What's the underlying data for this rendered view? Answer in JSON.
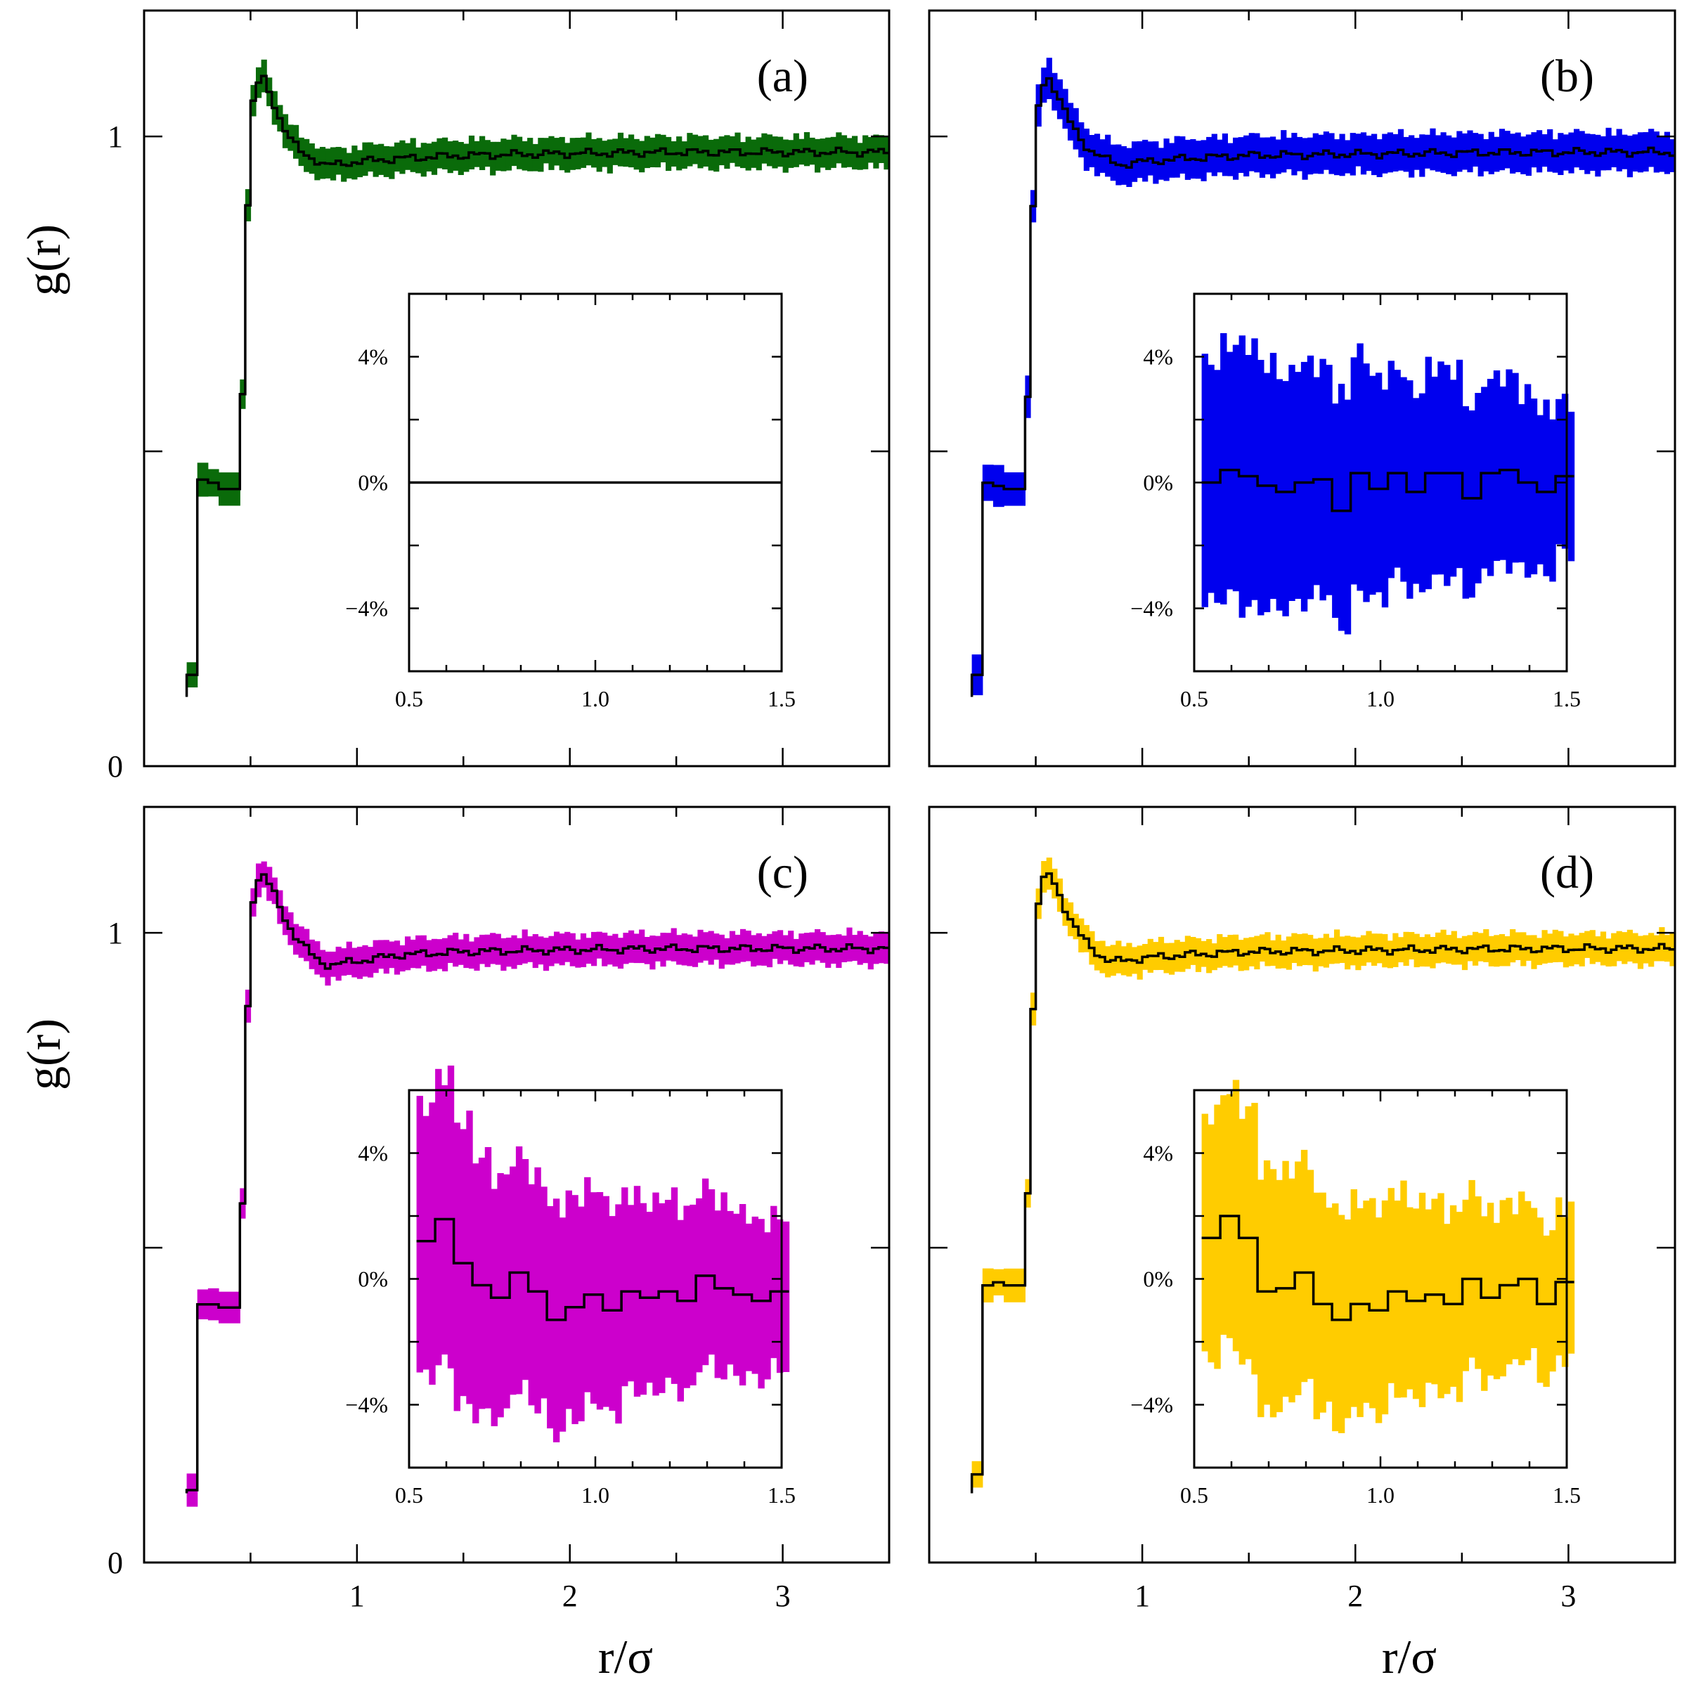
{
  "figure": {
    "xlabel": "r/σ",
    "ylabel": "g(r)",
    "x_ticks": [
      1,
      2,
      3
    ],
    "x_tick_labels": [
      "1",
      "2",
      "3"
    ],
    "y_ticks": [
      0,
      1
    ],
    "y_tick_labels": [
      "0",
      "1"
    ],
    "inset_x_tick_labels": [
      "0.5",
      "1.0",
      "1.5"
    ],
    "inset_y_tick_labels": [
      "4%",
      "0%",
      "−4%"
    ]
  },
  "chart_data": [
    {
      "type": "line",
      "panel": "(a)",
      "color": "#0a6b0a",
      "xlabel": "",
      "ylabel": "g(r)",
      "xlim": [
        0,
        3.5
      ],
      "ylim": [
        0,
        1.2
      ],
      "x": [
        0.2,
        0.45,
        0.5,
        0.55,
        0.6,
        0.65,
        0.7,
        0.75,
        0.8,
        0.85,
        0.9,
        1.0,
        1.2,
        1.5,
        2.0,
        2.5,
        3.0,
        3.5
      ],
      "y": [
        0.14,
        0.45,
        1.04,
        1.1,
        1.06,
        1.02,
        0.99,
        0.97,
        0.965,
        0.955,
        0.955,
        0.96,
        0.965,
        0.97,
        0.973,
        0.975,
        0.975,
        0.975
      ],
      "band": 0.02,
      "near_values": [
        0.145,
        0.455,
        0.45,
        0.44
      ],
      "inset": {
        "xlim": [
          0.5,
          1.5
        ],
        "ylim": [
          -6,
          6
        ],
        "x": [
          0.5,
          0.6,
          0.7,
          0.8,
          0.9,
          1.0,
          1.1,
          1.2,
          1.3,
          1.4,
          1.5
        ],
        "y": [
          0,
          0,
          0,
          0,
          0,
          0,
          0,
          0,
          0,
          0,
          0
        ],
        "band": [
          0,
          0,
          0,
          0,
          0,
          0,
          0,
          0,
          0,
          0,
          0
        ]
      }
    },
    {
      "type": "line",
      "panel": "(b)",
      "color": "#0000ee",
      "xlabel": "",
      "ylabel": "",
      "xlim": [
        0,
        3.5
      ],
      "ylim": [
        0,
        1.2
      ],
      "x": [
        0.2,
        0.45,
        0.5,
        0.55,
        0.6,
        0.65,
        0.7,
        0.75,
        0.8,
        0.85,
        0.9,
        1.0,
        1.2,
        1.5,
        2.0,
        2.5,
        3.0,
        3.5
      ],
      "y": [
        0.14,
        0.44,
        1.03,
        1.1,
        1.07,
        1.03,
        1.0,
        0.98,
        0.97,
        0.96,
        0.955,
        0.96,
        0.965,
        0.97,
        0.972,
        0.974,
        0.975,
        0.975
      ],
      "band": 0.025,
      "near_values": [
        0.145,
        0.45,
        0.445,
        0.44
      ],
      "inset": {
        "xlim": [
          0.5,
          1.5
        ],
        "ylim": [
          -6,
          6
        ],
        "x": [
          0.52,
          0.57,
          0.62,
          0.67,
          0.72,
          0.77,
          0.82,
          0.87,
          0.92,
          0.97,
          1.02,
          1.07,
          1.12,
          1.17,
          1.22,
          1.27,
          1.32,
          1.37,
          1.42,
          1.47
        ],
        "y": [
          0.0,
          0.4,
          0.2,
          -0.1,
          -0.3,
          0.0,
          0.1,
          -0.9,
          0.3,
          -0.2,
          0.3,
          -0.3,
          0.3,
          0.3,
          -0.5,
          0.3,
          0.4,
          0.0,
          -0.3,
          0.2
        ],
        "band": [
          3.8,
          4.0,
          4.2,
          3.9,
          3.7,
          3.8,
          3.6,
          3.7,
          3.8,
          3.5,
          3.3,
          3.2,
          3.4,
          3.3,
          3.0,
          3.0,
          3.0,
          2.8,
          2.6,
          2.4
        ]
      }
    },
    {
      "type": "line",
      "panel": "(c)",
      "color": "#cc00cc",
      "xlabel": "r/σ",
      "ylabel": "g(r)",
      "xlim": [
        0,
        3.5
      ],
      "ylim": [
        0,
        1.2
      ],
      "x": [
        0.2,
        0.45,
        0.5,
        0.55,
        0.6,
        0.65,
        0.7,
        0.75,
        0.8,
        0.85,
        0.9,
        1.0,
        1.2,
        1.5,
        2.0,
        2.5,
        3.0,
        3.5
      ],
      "y": [
        0.11,
        0.41,
        1.04,
        1.1,
        1.07,
        1.03,
        1.0,
        0.98,
        0.96,
        0.95,
        0.95,
        0.955,
        0.965,
        0.97,
        0.973,
        0.975,
        0.975,
        0.975
      ],
      "band": 0.02,
      "near_values": [
        0.115,
        0.41,
        0.41,
        0.405
      ],
      "inset": {
        "xlim": [
          0.5,
          1.5
        ],
        "ylim": [
          -6,
          6
        ],
        "x": [
          0.52,
          0.57,
          0.62,
          0.67,
          0.72,
          0.77,
          0.82,
          0.87,
          0.92,
          0.97,
          1.02,
          1.07,
          1.12,
          1.17,
          1.22,
          1.27,
          1.32,
          1.37,
          1.42,
          1.47
        ],
        "y": [
          1.2,
          1.9,
          0.5,
          -0.2,
          -0.6,
          0.2,
          -0.4,
          -1.3,
          -0.9,
          -0.5,
          -1.0,
          -0.4,
          -0.6,
          -0.4,
          -0.7,
          0.1,
          -0.3,
          -0.5,
          -0.7,
          -0.4
        ],
        "band": [
          4.3,
          4.6,
          4.5,
          4.1,
          3.8,
          3.7,
          3.6,
          3.6,
          3.5,
          3.4,
          3.3,
          3.1,
          3.0,
          3.0,
          2.9,
          2.8,
          2.7,
          2.6,
          2.5,
          2.4
        ]
      }
    },
    {
      "type": "line",
      "panel": "(d)",
      "color": "#ffcc00",
      "xlabel": "r/σ",
      "ylabel": "",
      "xlim": [
        0,
        3.5
      ],
      "ylim": [
        0,
        1.2
      ],
      "x": [
        0.2,
        0.45,
        0.5,
        0.55,
        0.6,
        0.65,
        0.7,
        0.75,
        0.8,
        0.85,
        0.9,
        1.0,
        1.2,
        1.5,
        2.0,
        2.5,
        3.0,
        3.5
      ],
      "y": [
        0.135,
        0.44,
        1.03,
        1.1,
        1.07,
        1.03,
        1.0,
        0.98,
        0.965,
        0.955,
        0.955,
        0.96,
        0.965,
        0.97,
        0.972,
        0.974,
        0.975,
        0.975
      ],
      "band": 0.02,
      "near_values": [
        0.14,
        0.44,
        0.445,
        0.44
      ],
      "inset": {
        "xlim": [
          0.5,
          1.5
        ],
        "ylim": [
          -6,
          6
        ],
        "x": [
          0.52,
          0.57,
          0.62,
          0.67,
          0.72,
          0.77,
          0.82,
          0.87,
          0.92,
          0.97,
          1.02,
          1.07,
          1.12,
          1.17,
          1.22,
          1.27,
          1.32,
          1.37,
          1.42,
          1.47
        ],
        "y": [
          1.3,
          2.0,
          1.3,
          -0.4,
          -0.3,
          0.2,
          -0.8,
          -1.3,
          -0.8,
          -1.0,
          -0.4,
          -0.7,
          -0.5,
          -0.8,
          0.0,
          -0.6,
          -0.2,
          0.0,
          -0.8,
          -0.1
        ],
        "band": [
          3.9,
          4.0,
          4.1,
          3.9,
          3.7,
          3.6,
          3.4,
          3.4,
          3.3,
          3.3,
          3.2,
          3.1,
          3.0,
          2.9,
          2.8,
          2.7,
          2.6,
          2.5,
          2.4,
          2.4
        ]
      }
    }
  ]
}
